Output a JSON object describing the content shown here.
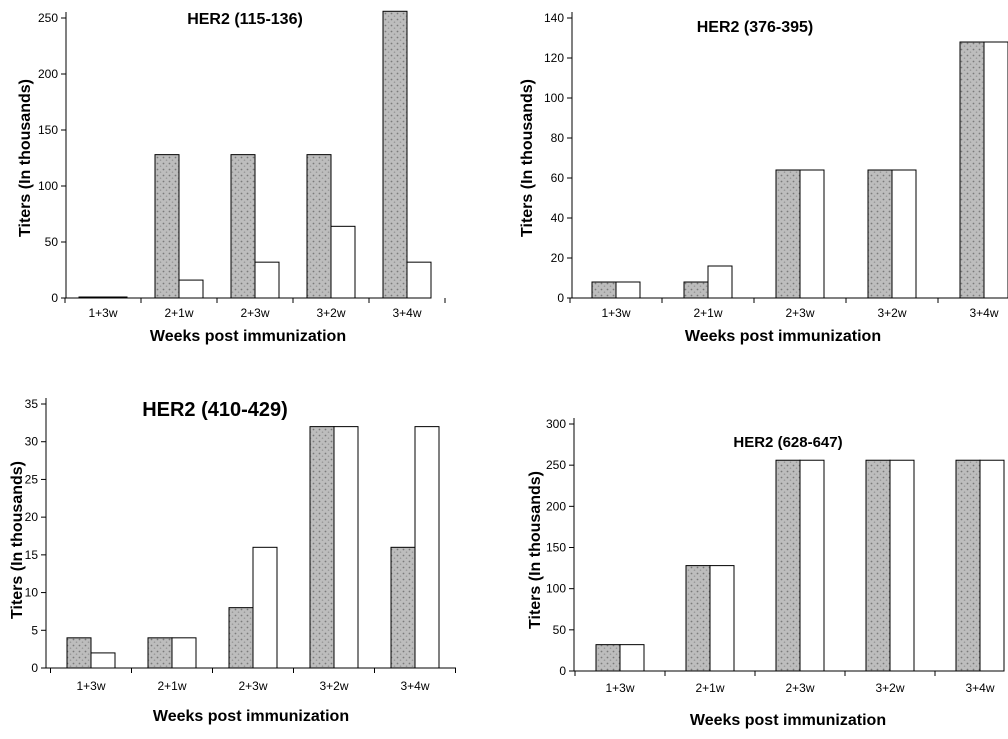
{
  "chart_data": [
    {
      "type": "bar",
      "title": "HER2 (115-136)",
      "xlabel": "Weeks post immunization",
      "ylabel": "Titers (In thousands)",
      "categories": [
        "1+3w",
        "2+1w",
        "2+3w",
        "3+2w",
        "3+4w"
      ],
      "ylim": [
        0,
        250
      ],
      "yticks": [
        "0",
        "50",
        "100",
        "150",
        "200",
        "250"
      ],
      "series": [
        {
          "values": [
            0,
            128,
            128,
            128,
            256
          ],
          "color": "#bdbdbd"
        },
        {
          "values": [
            0,
            16,
            32,
            64,
            32
          ],
          "color": "#ffffff"
        }
      ]
    },
    {
      "type": "bar",
      "title": "HER2 (376-395)",
      "xlabel": "Weeks post immunization",
      "ylabel": "Titers (In thousands)",
      "categories": [
        "1+3w",
        "2+1w",
        "2+3w",
        "3+2w",
        "3+4w"
      ],
      "ylim": [
        0,
        140
      ],
      "yticks": [
        "0",
        "20",
        "40",
        "60",
        "80",
        "100",
        "120",
        "140"
      ],
      "series": [
        {
          "values": [
            8,
            8,
            64,
            64,
            128
          ],
          "color": "#bdbdbd"
        },
        {
          "values": [
            8,
            16,
            64,
            64,
            128
          ],
          "color": "#ffffff"
        }
      ]
    },
    {
      "type": "bar",
      "title": "HER2 (410-429)",
      "xlabel": "Weeks post immunization",
      "ylabel": "Titers (In thousands)",
      "categories": [
        "1+3w",
        "2+1w",
        "2+3w",
        "3+2w",
        "3+4w"
      ],
      "ylim": [
        0,
        35
      ],
      "yticks": [
        "0",
        "5",
        "10",
        "15",
        "20",
        "25",
        "30",
        "35"
      ],
      "series": [
        {
          "values": [
            4,
            4,
            8,
            32,
            16
          ],
          "color": "#bdbdbd"
        },
        {
          "values": [
            2,
            4,
            16,
            32,
            32
          ],
          "color": "#ffffff"
        }
      ]
    },
    {
      "type": "bar",
      "title": "HER2 (628-647)",
      "xlabel": "Weeks post immunization",
      "ylabel": "Titers (In thousands)",
      "categories": [
        "1+3w",
        "2+1w",
        "2+3w",
        "3+2w",
        "3+4w"
      ],
      "ylim": [
        0,
        300
      ],
      "yticks": [
        "0",
        "50",
        "100",
        "150",
        "200",
        "250",
        "300"
      ],
      "series": [
        {
          "values": [
            32,
            128,
            256,
            256,
            256
          ],
          "color": "#bdbdbd"
        },
        {
          "values": [
            32,
            128,
            256,
            256,
            256
          ],
          "color": "#ffffff"
        }
      ]
    }
  ]
}
